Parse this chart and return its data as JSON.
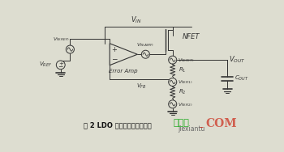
{
  "title": "图 2 LDO 内部框图（噪声源）",
  "watermark1": "接线图",
  "watermark2": "jiexiantu",
  "watermark3": "COM",
  "bg_color": "#ddddd0",
  "fig_width": 3.5,
  "fig_height": 1.88,
  "dpi": 100
}
